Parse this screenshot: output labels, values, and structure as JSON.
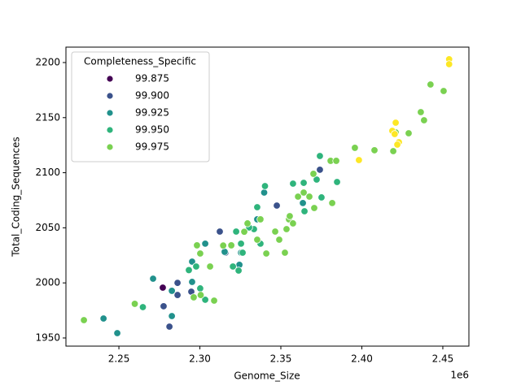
{
  "chart_data": {
    "type": "scatter",
    "x_label": "Genome_Size",
    "y_label": "Total_Coding_Sequences",
    "x_offset_label": "1e6",
    "legend_title": "Completeness_Specific",
    "legend_loc": "upper left",
    "xlim": [
      2217300,
      2466100
    ],
    "ylim": [
      1942.6,
      2214
    ],
    "xticks": [
      {
        "value": 2250000,
        "label": "2.25"
      },
      {
        "value": 2300000,
        "label": "2.30"
      },
      {
        "value": 2350000,
        "label": "2.35"
      },
      {
        "value": 2400000,
        "label": "2.40"
      },
      {
        "value": 2450000,
        "label": "2.45"
      }
    ],
    "yticks": [
      1950,
      2000,
      2050,
      2100,
      2150,
      2200
    ],
    "series": [
      {
        "name": "99.875",
        "color": "#440154",
        "x": [
          2277100
        ],
        "y": [
          1995.7
        ]
      },
      {
        "name": "99.900",
        "color": "#3b528b",
        "x": [
          2312300,
          2315800,
          2286200,
          2277600,
          2281200,
          2286200,
          2294700,
          2347500,
          2374100
        ],
        "y": [
          2046.6,
          2027.4,
          2000,
          1978.8,
          1960.3,
          1989,
          1992,
          2070.2,
          2102.7
        ]
      },
      {
        "name": "99.925",
        "color": "#21918c",
        "x": [
          2271100,
          2240500,
          2249000,
          2295200,
          2282700,
          2282700,
          2295200,
          2339700,
          2315300,
          2325400,
          2324400,
          2335400,
          2363600,
          2303300
        ],
        "y": [
          2003.8,
          1967.7,
          1954.4,
          2019.3,
          1992.8,
          1969.9,
          2000.9,
          2082,
          2028.2,
          2027.4,
          2016.4,
          2057.7,
          2072.5,
          2035.6
        ]
      },
      {
        "name": "99.950",
        "color": "#2fb47c",
        "x": [
          2264800,
          2297700,
          2300200,
          2293200,
          2303300,
          2322400,
          2325400,
          2320400,
          2323900,
          2333400,
          2337400,
          2340200,
          2357500,
          2364100,
          2374100,
          2364600,
          2372100,
          2384700,
          2375100,
          2330400,
          2326400,
          2335400
        ],
        "y": [
          1978,
          2014.9,
          1995,
          2011.6,
          1984.7,
          2046.6,
          2035.6,
          2014.9,
          2011.2,
          2048.8,
          2035.6,
          2087.9,
          2090.1,
          2090.8,
          2115.2,
          2065,
          2093.8,
          2091.6,
          2077.6,
          2050.3,
          2027.4,
          2068.7
        ]
      },
      {
        "name": "99.975",
        "color": "#7ad151",
        "x": [
          2228400,
          2259800,
          2300500,
          2296200,
          2308800,
          2298200,
          2300200,
          2306300,
          2314400,
          2319400,
          2327400,
          2329400,
          2335400,
          2337400,
          2341000,
          2346500,
          2349000,
          2355000,
          2357500,
          2355500,
          2352500,
          2353500,
          2360600,
          2364100,
          2367600,
          2370100,
          2380700,
          2384200,
          2381700,
          2370600,
          2395700,
          2407800,
          2420900,
          2419400,
          2428900,
          2436400,
          2442400,
          2438400,
          2450500
        ],
        "y": [
          1966.2,
          1981,
          1989,
          1986.9,
          1983.9,
          2034.1,
          2026.7,
          2014.9,
          2033.9,
          2034.1,
          2046.4,
          2054,
          2039.2,
          2057.7,
          2026.7,
          2046.6,
          2039.2,
          2057.7,
          2054,
          2060.6,
          2027.4,
          2048.8,
          2078.3,
          2082,
          2078.3,
          2099,
          2110.8,
          2110.8,
          2072.5,
          2068,
          2122.6,
          2120.4,
          2136.6,
          2119.6,
          2135.8,
          2155,
          2180.1,
          2147.6,
          2174.2
        ]
      },
      {
        "color": "#fde725",
        "x": [
          2398200,
          2418800,
          2420300,
          2422900,
          2453900,
          2453900,
          2421900,
          2420900
        ],
        "y": [
          2111.5,
          2138,
          2135.1,
          2127.7,
          2203,
          2198.5,
          2125.5,
          2145.4
        ]
      }
    ]
  }
}
